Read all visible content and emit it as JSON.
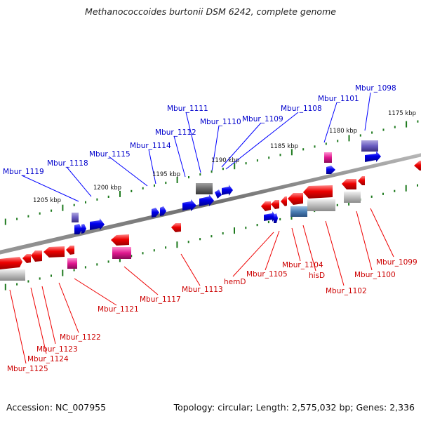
{
  "title": "Methanococcoides burtonii DSM 6242, complete genome",
  "footer": {
    "accession": "Accession: NC_007955",
    "summary": "Topology: circular; Length: 2,575,032 bp; Genes: 2,336"
  },
  "scale_labels": [
    "1175 kbp",
    "1180 kbp",
    "1185 kbp",
    "1190 kbp",
    "1195 kbp",
    "1200 kbp",
    "1205 kbp"
  ],
  "top_labels": [
    "Mbur_1098",
    "Mbur_1101",
    "Mbur_1108",
    "Mbur_1109",
    "Mbur_1110",
    "Mbur_1111",
    "Mbur_1112",
    "Mbur_1114",
    "Mbur_1115",
    "Mbur_1118",
    "Mbur_1119"
  ],
  "bottom_labels": [
    "Mbur_1099",
    "Mbur_1100",
    "Mbur_1102",
    "hisD",
    "Mbur_1104",
    "Mbur_1105",
    "hemD",
    "Mbur_1113",
    "Mbur_1117",
    "Mbur_1121",
    "Mbur_1122",
    "Mbur_1123",
    "Mbur_1124",
    "Mbur_1125"
  ],
  "colors": {
    "forward_label": "#0000cc",
    "reverse_label": "#cc0000",
    "backbone": "#7a7a7a",
    "scale_dash": "#1e7a1e"
  }
}
